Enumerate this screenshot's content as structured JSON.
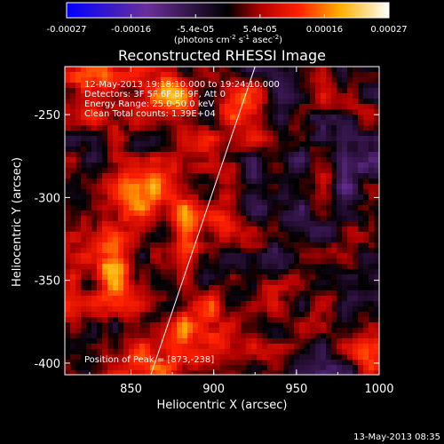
{
  "chart_data": {
    "type": "heatmap",
    "title": "Reconstructed RHESSI Image",
    "xlabel": "Heliocentric X (arcsec)",
    "ylabel": "Heliocentric Y (arcsec)",
    "xlim": [
      810,
      1000
    ],
    "ylim": [
      -407,
      -221
    ],
    "x_ticks": [
      850,
      900,
      950,
      1000
    ],
    "y_ticks": [
      -250,
      -300,
      -350,
      -400
    ],
    "colorbar": {
      "min": -0.00027,
      "max": 0.00027,
      "ticks": [
        "-0.00027",
        "-0.00016",
        "-5.4e-05",
        "5.4e-05",
        "0.00016",
        "0.00027"
      ],
      "label_html": "(photons cm<tspan baseline-shift=\"super\" font-size=\"7\">-2</tspan> s<tspan baseline-shift=\"super\" font-size=\"7\">-1</tspan> asec<tspan baseline-shift=\"super\" font-size=\"7\">-2</tspan>)"
    },
    "colors": {
      "negative_low": "#0000ff",
      "negative_mid": "#6a2f9a",
      "zero": "#000000",
      "positive_mid": "#ff2000",
      "positive_high": "#ffffff"
    },
    "info_lines": [
      "12-May-2013 19:18:10.000 to 19:24:10.000",
      "Detectors: 3F 5F 6F 8F 9F, Att 0",
      "Energy Range: 25.0-50.0 keV",
      "Clean   Total counts: 1.39E+04"
    ],
    "peak_label": "Position of Peak = [873,-238]",
    "limb_line": {
      "x1": 862,
      "y1": -407,
      "x2": 925,
      "y2": -221
    },
    "grid": false
  },
  "timestamp": "13-May-2013 08:35"
}
